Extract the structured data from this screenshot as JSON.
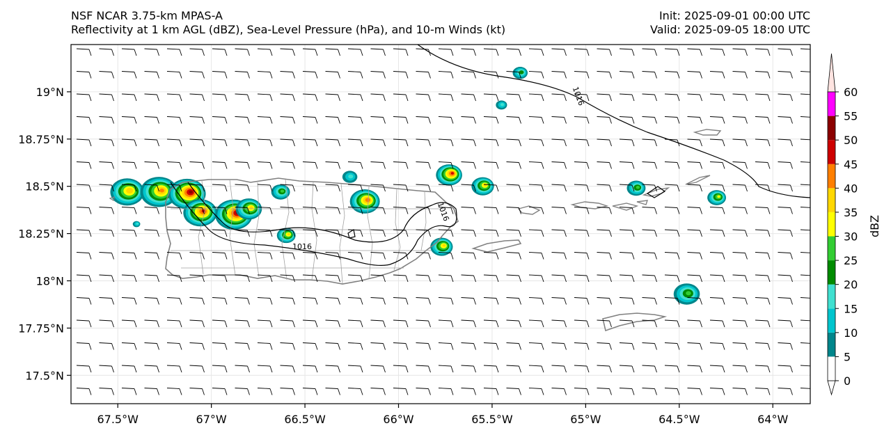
{
  "title_left": {
    "line1": "NSF NCAR 3.75-km MPAS-A",
    "line2": "Reflectivity at 1 km AGL (dBZ), Sea-Level Pressure (hPa), and 10-m Winds (kt)"
  },
  "title_right": {
    "line1": "Init: 2025-09-01 00:00 UTC",
    "line2": "Valid: 2025-09-05 18:00 UTC"
  },
  "axes": {
    "lon_range": [
      -67.75,
      -63.8
    ],
    "lat_range": [
      17.35,
      19.25
    ],
    "lon_ticks": [
      {
        "value": -67.5,
        "label": "67.5°W"
      },
      {
        "value": -67.0,
        "label": "67°W"
      },
      {
        "value": -66.5,
        "label": "66.5°W"
      },
      {
        "value": -66.0,
        "label": "66°W"
      },
      {
        "value": -65.5,
        "label": "65.5°W"
      },
      {
        "value": -65.0,
        "label": "65°W"
      },
      {
        "value": -64.5,
        "label": "64.5°W"
      },
      {
        "value": -64.0,
        "label": "64°W"
      }
    ],
    "lat_ticks": [
      {
        "value": 19.0,
        "label": "19°N"
      },
      {
        "value": 18.75,
        "label": "18.75°N"
      },
      {
        "value": 18.5,
        "label": "18.5°N"
      },
      {
        "value": 18.25,
        "label": "18.25°N"
      },
      {
        "value": 18.0,
        "label": "18°N"
      },
      {
        "value": 17.75,
        "label": "17.75°N"
      },
      {
        "value": 17.5,
        "label": "17.5°N"
      }
    ],
    "grid": true
  },
  "colorbar": {
    "label": "dBZ",
    "levels": [
      0,
      5,
      10,
      15,
      20,
      25,
      30,
      35,
      40,
      45,
      50,
      55,
      60
    ],
    "colors": [
      "#ffffff",
      "#00868b",
      "#00c5cd",
      "#40e0d0",
      "#008b00",
      "#32cd32",
      "#ffff00",
      "#ffd700",
      "#ff7f00",
      "#cd0000",
      "#8b0000",
      "#ff00ff"
    ],
    "over_color": "#ffe4e1",
    "tick_labels": [
      "0",
      "5",
      "10",
      "15",
      "20",
      "25",
      "30",
      "35",
      "40",
      "45",
      "50",
      "55",
      "60"
    ]
  },
  "pressure_contours": [
    {
      "value": 1016,
      "label": "1016"
    }
  ],
  "colors": {
    "coastline": "#808080",
    "municipal_border": "#a0a0a0",
    "contour": "#000000",
    "barb": "#000000"
  },
  "wind": {
    "direction_deg": 90,
    "speed_kt": 10
  },
  "reflectivity_cells": [
    {
      "lon": -67.45,
      "lat": 18.47,
      "r": 0.09,
      "peak": 38
    },
    {
      "lon": -67.28,
      "lat": 18.47,
      "r": 0.1,
      "peak": 40
    },
    {
      "lon": -67.13,
      "lat": 18.46,
      "r": 0.1,
      "peak": 50
    },
    {
      "lon": -67.06,
      "lat": 18.36,
      "r": 0.09,
      "peak": 45
    },
    {
      "lon": -66.88,
      "lat": 18.35,
      "r": 0.1,
      "peak": 50
    },
    {
      "lon": -66.8,
      "lat": 18.38,
      "r": 0.07,
      "peak": 35
    },
    {
      "lon": -66.63,
      "lat": 18.47,
      "r": 0.05,
      "peak": 25
    },
    {
      "lon": -66.6,
      "lat": 18.24,
      "r": 0.05,
      "peak": 35
    },
    {
      "lon": -66.18,
      "lat": 18.42,
      "r": 0.08,
      "peak": 42
    },
    {
      "lon": -65.73,
      "lat": 18.56,
      "r": 0.07,
      "peak": 45
    },
    {
      "lon": -65.55,
      "lat": 18.5,
      "r": 0.06,
      "peak": 35
    },
    {
      "lon": -65.77,
      "lat": 18.18,
      "r": 0.06,
      "peak": 35
    },
    {
      "lon": -66.26,
      "lat": 18.55,
      "r": 0.04,
      "peak": 15
    },
    {
      "lon": -65.35,
      "lat": 19.1,
      "r": 0.04,
      "peak": 22
    },
    {
      "lon": -65.45,
      "lat": 18.93,
      "r": 0.03,
      "peak": 15
    },
    {
      "lon": -64.73,
      "lat": 18.49,
      "r": 0.05,
      "peak": 25
    },
    {
      "lon": -64.3,
      "lat": 18.44,
      "r": 0.05,
      "peak": 30
    },
    {
      "lon": -64.46,
      "lat": 17.93,
      "r": 0.07,
      "peak": 25
    },
    {
      "lon": -67.4,
      "lat": 18.3,
      "r": 0.02,
      "peak": 15
    }
  ]
}
